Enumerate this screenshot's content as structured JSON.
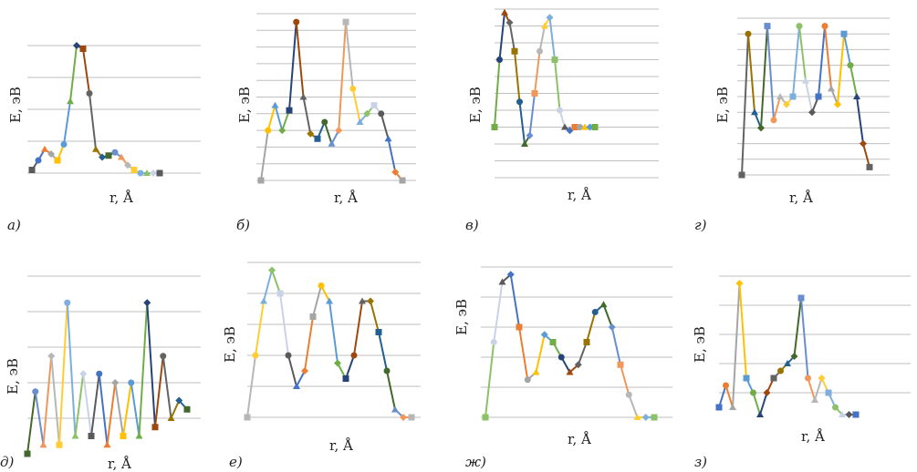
{
  "series_colors": [
    "#5a5a5a",
    "#4472c4",
    "#ed7d31",
    "#a5a5a5",
    "#ffc000",
    "#5b9bd5",
    "#70ad47",
    "#264478",
    "#9e480e",
    "#636363",
    "#997300",
    "#255e91",
    "#43682b",
    "#698ed0",
    "#f1975a",
    "#b7b7b7",
    "#ffcd33",
    "#7cafdd",
    "#8cc168",
    "#c9d3e8"
  ],
  "chart_data": [
    {
      "type": "line",
      "panel_label": "а)",
      "xlabel": "r, Å",
      "ylabel": "E, эВ",
      "ylim": [
        0,
        1
      ],
      "gridlines": [
        0.0,
        0.2,
        0.4,
        0.6,
        0.8
      ],
      "x": [
        0.0,
        0.05,
        0.1,
        0.15,
        0.2,
        0.25,
        0.3,
        0.35,
        0.4,
        0.45,
        0.5,
        0.55,
        0.6,
        0.65,
        0.7,
        0.75,
        0.8,
        0.85,
        0.9,
        0.95,
        1.0
      ],
      "values": [
        0.02,
        0.08,
        0.15,
        0.12,
        0.08,
        0.18,
        0.45,
        0.8,
        0.78,
        0.5,
        0.15,
        0.1,
        0.11,
        0.13,
        0.1,
        0.05,
        0.02,
        0.0,
        0.0,
        0.0,
        0.0
      ]
    },
    {
      "type": "line",
      "panel_label": "б)",
      "xlabel": "r, Å",
      "ylabel": "E, эВ",
      "ylim": [
        0,
        1
      ],
      "gridlines": [
        0.0,
        0.1,
        0.2,
        0.3,
        0.4,
        0.5,
        0.6,
        0.7,
        0.8,
        0.9,
        1.0
      ],
      "x": [
        0.0,
        0.05,
        0.1,
        0.15,
        0.2,
        0.25,
        0.3,
        0.35,
        0.4,
        0.45,
        0.5,
        0.55,
        0.6,
        0.65,
        0.7,
        0.75,
        0.8,
        0.85,
        0.9,
        0.95,
        1.0
      ],
      "values": [
        0.0,
        0.3,
        0.45,
        0.3,
        0.42,
        0.95,
        0.5,
        0.28,
        0.25,
        0.35,
        0.22,
        0.3,
        0.95,
        0.55,
        0.35,
        0.4,
        0.45,
        0.4,
        0.25,
        0.05,
        0.0
      ]
    },
    {
      "type": "line",
      "panel_label": "в)",
      "xlabel": "r, Å",
      "ylabel": "E, эВ",
      "ylim": [
        0,
        1
      ],
      "gridlines": [
        0.0,
        0.1,
        0.2,
        0.3,
        0.4,
        0.5,
        0.6,
        0.7,
        0.8,
        0.9,
        1.0
      ],
      "x": [
        0.0,
        0.05,
        0.1,
        0.15,
        0.2,
        0.25,
        0.3,
        0.35,
        0.4,
        0.45,
        0.5,
        0.55,
        0.6,
        0.65,
        0.7,
        0.75,
        0.8,
        0.85,
        0.9,
        0.95,
        1.0
      ],
      "values": [
        0.3,
        0.7,
        0.98,
        0.92,
        0.75,
        0.45,
        0.2,
        0.25,
        0.5,
        0.75,
        0.9,
        0.95,
        0.7,
        0.4,
        0.3,
        0.28,
        0.3,
        0.3,
        0.3,
        0.3,
        0.3
      ]
    },
    {
      "type": "line",
      "panel_label": "г)",
      "xlabel": "r, Å",
      "ylabel": "E, эВ",
      "ylim": [
        0,
        1
      ],
      "gridlines": [
        0.0,
        0.1,
        0.2,
        0.3,
        0.4,
        0.5,
        0.6,
        0.7,
        0.8,
        0.9,
        1.0
      ],
      "x": [
        0.0,
        0.05,
        0.1,
        0.15,
        0.2,
        0.25,
        0.3,
        0.35,
        0.4,
        0.45,
        0.5,
        0.55,
        0.6,
        0.65,
        0.7,
        0.75,
        0.8,
        0.85,
        0.9,
        0.95,
        1.0
      ],
      "values": [
        0.0,
        0.9,
        0.4,
        0.3,
        0.95,
        0.35,
        0.5,
        0.45,
        0.5,
        0.95,
        0.6,
        0.4,
        0.5,
        0.95,
        0.55,
        0.45,
        0.9,
        0.7,
        0.5,
        0.2,
        0.05
      ]
    },
    {
      "type": "line",
      "panel_label": "д)",
      "xlabel": "r, Å",
      "ylabel": "E, эВ",
      "ylim": [
        0,
        1
      ],
      "gridlines": [
        0.2,
        0.4,
        0.6,
        0.8,
        1.0
      ],
      "x": [
        0.0,
        0.05,
        0.1,
        0.15,
        0.2,
        0.25,
        0.3,
        0.35,
        0.4,
        0.45,
        0.5,
        0.55,
        0.6,
        0.65,
        0.7,
        0.75,
        0.8,
        0.85,
        0.9,
        0.95,
        1.0
      ],
      "values": [
        0.0,
        0.35,
        0.05,
        0.55,
        0.05,
        0.85,
        0.1,
        0.45,
        0.1,
        0.45,
        0.05,
        0.4,
        0.1,
        0.4,
        0.1,
        0.85,
        0.15,
        0.55,
        0.2,
        0.3,
        0.25
      ]
    },
    {
      "type": "line",
      "panel_label": "е)",
      "xlabel": "r, Å",
      "ylabel": "E, эВ",
      "ylim": [
        0,
        1
      ],
      "gridlines": [
        0.0,
        0.2,
        0.4,
        0.6,
        0.8,
        1.0
      ],
      "x": [
        0.0,
        0.05,
        0.1,
        0.15,
        0.2,
        0.25,
        0.3,
        0.35,
        0.4,
        0.45,
        0.5,
        0.55,
        0.6,
        0.65,
        0.7,
        0.75,
        0.8,
        0.85,
        0.9,
        0.95,
        1.0
      ],
      "values": [
        0.0,
        0.4,
        0.75,
        0.95,
        0.8,
        0.4,
        0.2,
        0.3,
        0.65,
        0.85,
        0.75,
        0.35,
        0.25,
        0.4,
        0.75,
        0.75,
        0.55,
        0.3,
        0.05,
        0.0,
        0.0
      ]
    },
    {
      "type": "line",
      "panel_label": "ж)",
      "xlabel": "r, Å",
      "ylabel": "E, эВ",
      "ylim": [
        0,
        1
      ],
      "gridlines": [
        0.0,
        0.2,
        0.4,
        0.6,
        0.8,
        1.0
      ],
      "x": [
        0.0,
        0.05,
        0.1,
        0.15,
        0.2,
        0.25,
        0.3,
        0.35,
        0.4,
        0.45,
        0.5,
        0.55,
        0.6,
        0.65,
        0.7,
        0.75,
        0.8,
        0.85,
        0.9,
        0.95,
        1.0
      ],
      "values": [
        0.0,
        0.5,
        0.9,
        0.95,
        0.6,
        0.25,
        0.3,
        0.55,
        0.5,
        0.4,
        0.3,
        0.35,
        0.5,
        0.7,
        0.75,
        0.6,
        0.35,
        0.15,
        0.0,
        0.0,
        0.0
      ]
    },
    {
      "type": "line",
      "panel_label": "з)",
      "xlabel": "r, Å",
      "ylabel": "E, эВ",
      "ylim": [
        0,
        1
      ],
      "gridlines": [
        0.2,
        0.4,
        0.6,
        0.8,
        1.0
      ],
      "x": [
        0.0,
        0.05,
        0.1,
        0.15,
        0.2,
        0.25,
        0.3,
        0.35,
        0.4,
        0.45,
        0.5,
        0.55,
        0.6,
        0.65,
        0.7,
        0.75,
        0.8,
        0.85,
        0.9,
        0.95,
        1.0
      ],
      "values": [
        0.1,
        0.25,
        0.1,
        0.95,
        0.3,
        0.2,
        0.05,
        0.2,
        0.3,
        0.35,
        0.4,
        0.45,
        0.85,
        0.3,
        0.15,
        0.3,
        0.2,
        0.1,
        0.05,
        0.05,
        0.05
      ]
    }
  ]
}
